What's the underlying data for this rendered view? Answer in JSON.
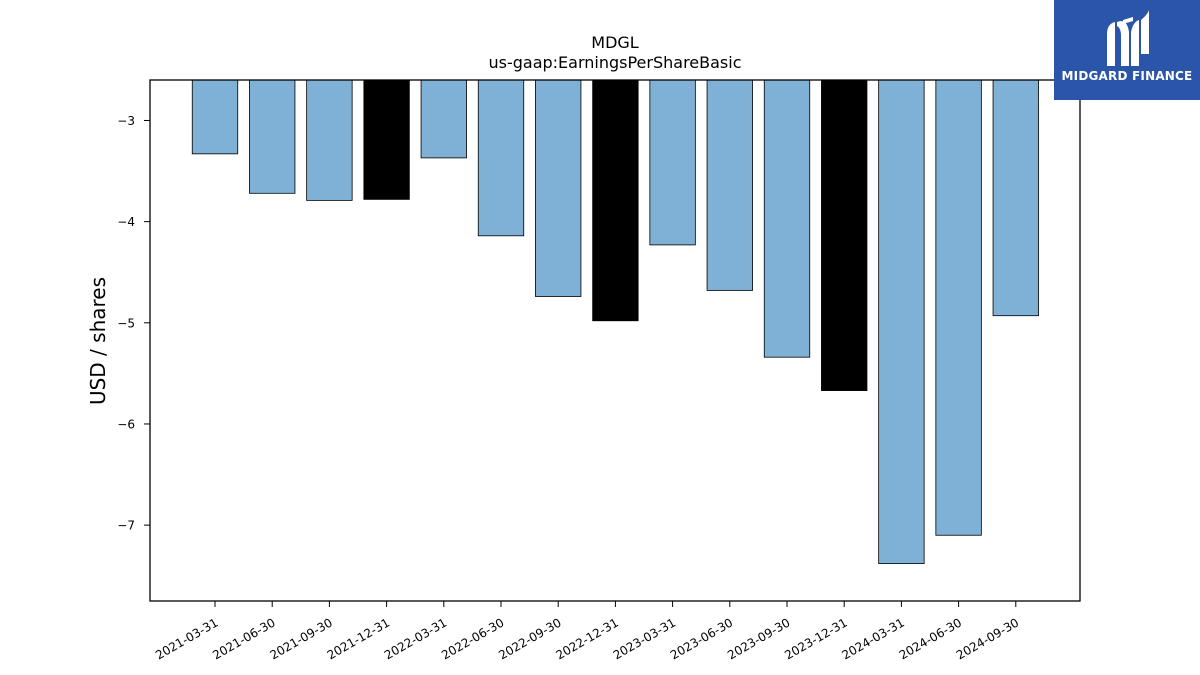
{
  "brand": {
    "name": "MIDGARD FINANCE",
    "bg_color": "#2a55a8"
  },
  "chart_data": {
    "type": "bar",
    "title": "MDGL",
    "subtitle": "us-gaap:EarningsPerShareBasic",
    "ylabel": "USD / shares",
    "xlabel": "",
    "ylim": [
      -7.75,
      -2.6
    ],
    "yticks": [
      -3,
      -4,
      -5,
      -6,
      -7
    ],
    "ytick_labels": [
      "−3",
      "−4",
      "−5",
      "−6",
      "−7"
    ],
    "grid": false,
    "categories": [
      "2021-03-31",
      "2021-06-30",
      "2021-09-30",
      "2021-12-31",
      "2022-03-31",
      "2022-06-30",
      "2022-09-30",
      "2022-12-31",
      "2023-03-31",
      "2023-06-30",
      "2023-09-30",
      "2023-12-31",
      "2024-03-31",
      "2024-06-30",
      "2024-09-30"
    ],
    "values": [
      -3.33,
      -3.72,
      -3.79,
      -3.78,
      -3.37,
      -4.14,
      -4.74,
      -4.98,
      -4.23,
      -4.68,
      -5.34,
      -5.67,
      -7.38,
      -7.1,
      -4.93
    ],
    "bar_colors": [
      "#7fb0d5",
      "#7fb0d5",
      "#7fb0d5",
      "#000000",
      "#7fb0d5",
      "#7fb0d5",
      "#7fb0d5",
      "#000000",
      "#7fb0d5",
      "#7fb0d5",
      "#7fb0d5",
      "#000000",
      "#7fb0d5",
      "#7fb0d5",
      "#7fb0d5"
    ]
  }
}
